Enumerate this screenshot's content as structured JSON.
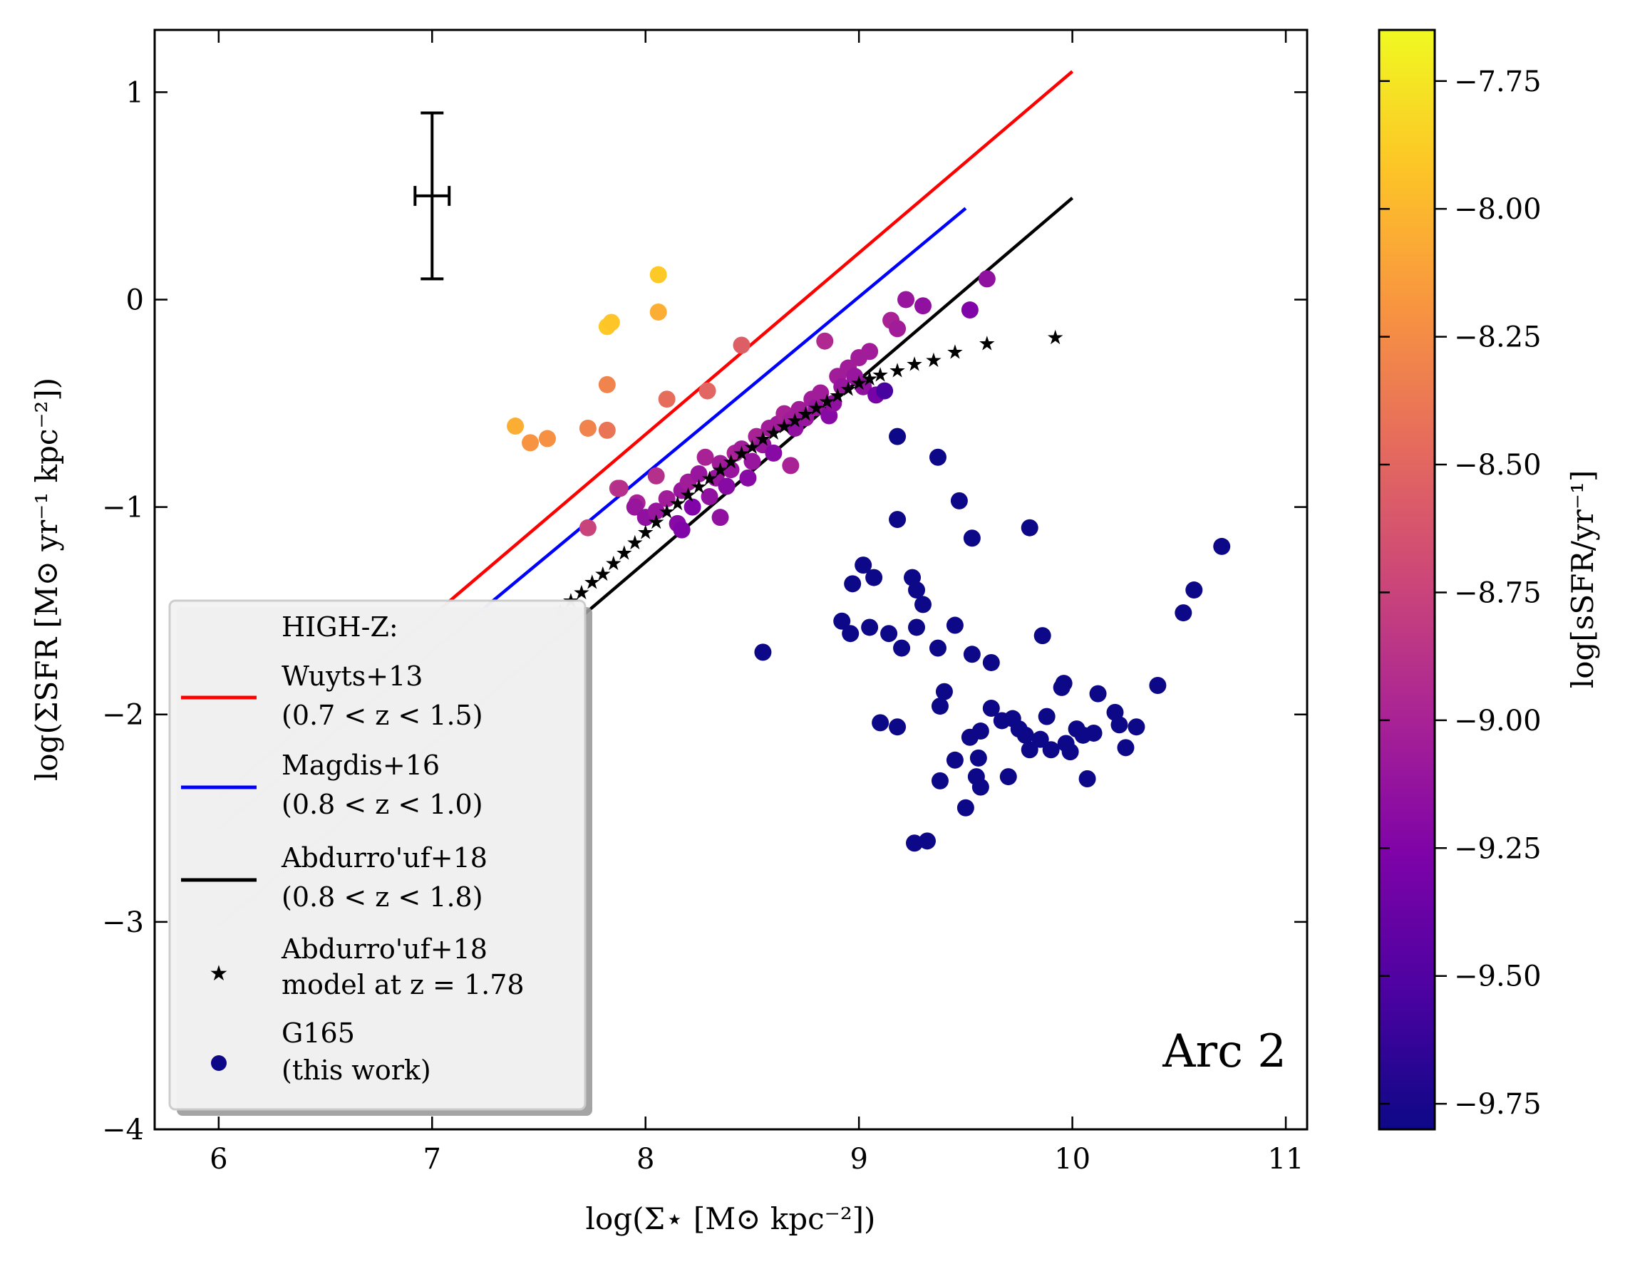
{
  "chart_data": {
    "type": "scatter",
    "xlabel": "log(Σ⋆ [M⊙ kpc⁻²])",
    "ylabel": "log(ΣSFR [M⊙ yr⁻¹ kpc⁻²])",
    "xlim": [
      5.7,
      11.1
    ],
    "ylim": [
      -4,
      1.3
    ],
    "xticks": [
      "6",
      "7",
      "8",
      "9",
      "10",
      "11"
    ],
    "yticks": [
      "1",
      "0",
      "−1",
      "−2",
      "−3",
      "−4"
    ],
    "annotation": "Arc 2",
    "errorbar": {
      "x": 7.0,
      "y": 0.5,
      "xerr": 0.08,
      "yerr": 0.4
    },
    "lines": [
      {
        "name": "Wuyts+13",
        "color": "#ff0000",
        "x": [
          6.0,
          10.0
        ],
        "y": [
          -2.4,
          1.1
        ]
      },
      {
        "name": "Magdis+16",
        "color": "#0000ff",
        "x": [
          6.0,
          9.5
        ],
        "y": [
          -2.55,
          0.44
        ]
      },
      {
        "name": "Abdurro'uf+18",
        "color": "#000000",
        "x": [
          6.0,
          10.0
        ],
        "y": [
          -3.02,
          0.49
        ]
      }
    ],
    "model_stars": {
      "name": "Abdurro'uf+18 model at z = 1.78",
      "x": [
        7.6,
        7.65,
        7.7,
        7.75,
        7.8,
        7.85,
        7.9,
        7.95,
        8.0,
        8.05,
        8.1,
        8.15,
        8.2,
        8.25,
        8.3,
        8.35,
        8.4,
        8.45,
        8.5,
        8.55,
        8.6,
        8.65,
        8.7,
        8.75,
        8.8,
        8.85,
        8.9,
        8.95,
        9.0,
        9.05,
        9.1,
        9.18,
        9.26,
        9.35,
        9.45,
        9.6,
        9.92
      ],
      "y": [
        -1.5,
        -1.45,
        -1.41,
        -1.36,
        -1.32,
        -1.27,
        -1.22,
        -1.17,
        -1.12,
        -1.07,
        -1.02,
        -0.98,
        -0.94,
        -0.9,
        -0.86,
        -0.82,
        -0.78,
        -0.74,
        -0.71,
        -0.67,
        -0.64,
        -0.61,
        -0.58,
        -0.55,
        -0.52,
        -0.49,
        -0.46,
        -0.43,
        -0.4,
        -0.38,
        -0.36,
        -0.34,
        -0.31,
        -0.29,
        -0.25,
        -0.21,
        -0.18
      ]
    },
    "colorbar": {
      "label": "log[sSFR/yr⁻¹]",
      "range": [
        -9.8,
        -7.65
      ],
      "ticks": [
        "−7.75",
        "−8.00",
        "−8.25",
        "−8.50",
        "−8.75",
        "−9.00",
        "−9.25",
        "−9.50",
        "−9.75"
      ],
      "colormap": "plasma"
    },
    "series": [
      {
        "name": "G165 (this work)",
        "points": [
          [
            7.39,
            -0.61,
            -8.05
          ],
          [
            7.46,
            -0.69,
            -8.2
          ],
          [
            7.54,
            -0.67,
            -8.22
          ],
          [
            7.73,
            -0.62,
            -8.3
          ],
          [
            7.82,
            -0.63,
            -8.4
          ],
          [
            7.82,
            -0.41,
            -8.3
          ],
          [
            7.82,
            -0.13,
            -7.9
          ],
          [
            7.84,
            -0.11,
            -7.92
          ],
          [
            8.06,
            -0.06,
            -8.05
          ],
          [
            8.06,
            0.12,
            -7.9
          ],
          [
            8.1,
            -0.48,
            -8.45
          ],
          [
            8.29,
            -0.44,
            -8.5
          ],
          [
            8.45,
            -0.22,
            -8.55
          ],
          [
            7.73,
            -1.1,
            -8.75
          ],
          [
            7.87,
            -0.91,
            -8.85
          ],
          [
            7.88,
            -0.91,
            -8.9
          ],
          [
            7.96,
            -0.98,
            -9.0
          ],
          [
            8.05,
            -0.85,
            -8.9
          ],
          [
            7.95,
            -1.0,
            -9.1
          ],
          [
            8.0,
            -1.05,
            -9.15
          ],
          [
            8.05,
            -1.02,
            -9.1
          ],
          [
            8.1,
            -0.96,
            -9.05
          ],
          [
            8.15,
            -1.08,
            -9.2
          ],
          [
            8.17,
            -0.92,
            -9.1
          ],
          [
            8.2,
            -0.88,
            -9.05
          ],
          [
            8.22,
            -1.0,
            -9.25
          ],
          [
            8.25,
            -0.84,
            -9.1
          ],
          [
            8.28,
            -0.76,
            -9.0
          ],
          [
            8.3,
            -0.95,
            -9.15
          ],
          [
            8.33,
            -0.86,
            -9.1
          ],
          [
            8.35,
            -0.79,
            -9.05
          ],
          [
            8.38,
            -0.9,
            -9.2
          ],
          [
            8.4,
            -0.82,
            -9.1
          ],
          [
            8.42,
            -0.74,
            -9.0
          ],
          [
            8.45,
            -0.72,
            -9.05
          ],
          [
            8.48,
            -0.86,
            -9.2
          ],
          [
            8.5,
            -0.78,
            -9.1
          ],
          [
            8.52,
            -0.66,
            -9.0
          ],
          [
            8.55,
            -0.7,
            -9.1
          ],
          [
            8.58,
            -0.62,
            -9.05
          ],
          [
            8.6,
            -0.74,
            -9.2
          ],
          [
            8.62,
            -0.6,
            -9.05
          ],
          [
            8.65,
            -0.55,
            -9.0
          ],
          [
            8.68,
            -0.58,
            -9.05
          ],
          [
            8.7,
            -0.62,
            -9.15
          ],
          [
            8.72,
            -0.53,
            -9.05
          ],
          [
            8.75,
            -0.57,
            -9.1
          ],
          [
            8.78,
            -0.48,
            -9.05
          ],
          [
            8.8,
            -0.52,
            -9.1
          ],
          [
            8.82,
            -0.45,
            -9.05
          ],
          [
            8.84,
            -0.2,
            -8.95
          ],
          [
            8.86,
            -0.56,
            -9.2
          ],
          [
            8.88,
            -0.5,
            -9.15
          ],
          [
            8.9,
            -0.37,
            -9.05
          ],
          [
            8.92,
            -0.42,
            -9.1
          ],
          [
            8.95,
            -0.33,
            -9.05
          ],
          [
            8.98,
            -0.37,
            -9.1
          ],
          [
            9.0,
            -0.28,
            -9.05
          ],
          [
            9.02,
            -0.42,
            -9.15
          ],
          [
            9.05,
            -0.25,
            -9.05
          ],
          [
            9.08,
            -0.46,
            -9.3
          ],
          [
            9.15,
            -0.1,
            -9.0
          ],
          [
            9.18,
            -0.14,
            -9.05
          ],
          [
            9.22,
            0.0,
            -9.1
          ],
          [
            9.3,
            -0.03,
            -9.15
          ],
          [
            9.52,
            -0.05,
            -9.25
          ],
          [
            9.6,
            0.1,
            -9.15
          ],
          [
            8.68,
            -0.8,
            -9.0
          ],
          [
            8.35,
            -1.05,
            -9.15
          ],
          [
            8.17,
            -1.11,
            -9.25
          ],
          [
            9.12,
            -0.44,
            -9.55
          ],
          [
            9.18,
            -0.66,
            -9.8
          ],
          [
            9.37,
            -0.76,
            -9.8
          ],
          [
            9.47,
            -0.97,
            -9.8
          ],
          [
            9.18,
            -1.06,
            -9.8
          ],
          [
            9.53,
            -1.15,
            -9.8
          ],
          [
            9.8,
            -1.1,
            -9.8
          ],
          [
            9.02,
            -1.28,
            -9.8
          ],
          [
            8.97,
            -1.37,
            -9.8
          ],
          [
            9.07,
            -1.34,
            -9.8
          ],
          [
            9.25,
            -1.34,
            -9.8
          ],
          [
            9.27,
            -1.4,
            -9.8
          ],
          [
            9.3,
            -1.47,
            -9.8
          ],
          [
            8.92,
            -1.55,
            -9.8
          ],
          [
            8.96,
            -1.61,
            -9.8
          ],
          [
            9.05,
            -1.58,
            -9.8
          ],
          [
            9.14,
            -1.61,
            -9.8
          ],
          [
            9.2,
            -1.68,
            -9.8
          ],
          [
            9.27,
            -1.58,
            -9.8
          ],
          [
            9.37,
            -1.68,
            -9.8
          ],
          [
            9.45,
            -1.57,
            -9.8
          ],
          [
            9.53,
            -1.71,
            -9.8
          ],
          [
            9.62,
            -1.75,
            -9.8
          ],
          [
            9.86,
            -1.62,
            -9.8
          ],
          [
            8.55,
            -1.7,
            -9.8
          ],
          [
            9.1,
            -2.04,
            -9.8
          ],
          [
            9.18,
            -2.06,
            -9.8
          ],
          [
            9.4,
            -1.89,
            -9.8
          ],
          [
            9.38,
            -1.96,
            -9.8
          ],
          [
            9.52,
            -2.11,
            -9.8
          ],
          [
            9.57,
            -2.08,
            -9.8
          ],
          [
            9.62,
            -1.97,
            -9.8
          ],
          [
            9.67,
            -2.03,
            -9.8
          ],
          [
            9.72,
            -2.02,
            -9.8
          ],
          [
            9.75,
            -2.07,
            -9.8
          ],
          [
            9.78,
            -2.1,
            -9.8
          ],
          [
            9.8,
            -2.17,
            -9.8
          ],
          [
            9.85,
            -2.12,
            -9.8
          ],
          [
            9.88,
            -2.01,
            -9.8
          ],
          [
            9.9,
            -2.17,
            -9.8
          ],
          [
            9.95,
            -1.87,
            -9.8
          ],
          [
            9.96,
            -1.85,
            -9.8
          ],
          [
            9.97,
            -2.14,
            -9.8
          ],
          [
            9.99,
            -2.18,
            -9.8
          ],
          [
            10.02,
            -2.07,
            -9.8
          ],
          [
            10.05,
            -2.1,
            -9.8
          ],
          [
            10.07,
            -2.31,
            -9.8
          ],
          [
            10.1,
            -2.09,
            -9.8
          ],
          [
            10.12,
            -1.9,
            -9.8
          ],
          [
            10.2,
            -1.99,
            -9.8
          ],
          [
            10.22,
            -2.05,
            -9.8
          ],
          [
            10.25,
            -2.16,
            -9.8
          ],
          [
            10.3,
            -2.06,
            -9.8
          ],
          [
            10.4,
            -1.86,
            -9.8
          ],
          [
            9.45,
            -2.22,
            -9.8
          ],
          [
            9.55,
            -2.3,
            -9.8
          ],
          [
            9.57,
            -2.35,
            -9.8
          ],
          [
            9.56,
            -2.21,
            -9.8
          ],
          [
            9.7,
            -2.3,
            -9.8
          ],
          [
            9.38,
            -2.32,
            -9.8
          ],
          [
            9.5,
            -2.45,
            -9.8
          ],
          [
            9.26,
            -2.62,
            -9.8
          ],
          [
            9.32,
            -2.61,
            -9.8
          ],
          [
            10.52,
            -1.51,
            -9.8
          ],
          [
            10.57,
            -1.4,
            -9.8
          ],
          [
            10.7,
            -1.19,
            -9.8
          ]
        ]
      }
    ],
    "legend": {
      "title": "HIGH-Z:",
      "entries": [
        {
          "line1": "Wuyts+13",
          "line2": "(0.7 < z < 1.5)",
          "color": "#ff0000",
          "marker": "line"
        },
        {
          "line1": "Magdis+16",
          "line2": "(0.8 < z < 1.0)",
          "color": "#0000ff",
          "marker": "line"
        },
        {
          "line1": "Abdurro'uf+18",
          "line2": "(0.8 < z < 1.8)",
          "color": "#000000",
          "marker": "line"
        },
        {
          "line1": "Abdurro'uf+18",
          "line2": "model at z = 1.78",
          "color": "#222222",
          "marker": "star"
        },
        {
          "line1": "G165",
          "line2": "(this work)",
          "color": "#0d0887",
          "marker": "circle"
        }
      ],
      "placement": "lower-left"
    }
  }
}
